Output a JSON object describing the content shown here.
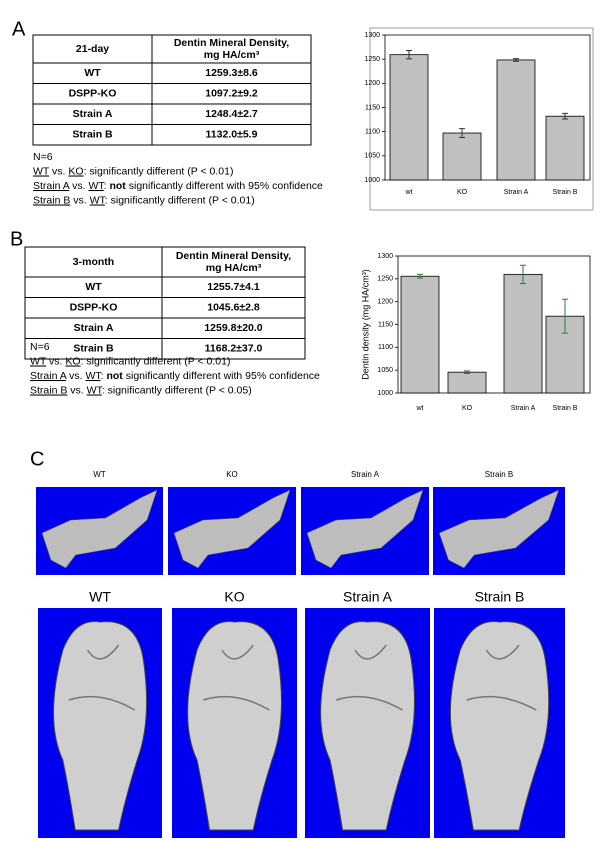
{
  "panels": [
    {
      "label": "A",
      "table": {
        "header": [
          [
            "21-day"
          ],
          [
            "Dentin Mineral Density,",
            "mg HA/cm³"
          ]
        ],
        "rows": [
          [
            "WT",
            "1259.3±8.6"
          ],
          [
            "DSPP-KO",
            "1097.2±9.2"
          ],
          [
            "Strain A",
            "1248.4±2.7"
          ],
          [
            "Strain B",
            "1132.0±5.9"
          ]
        ]
      },
      "notes": [
        [
          "N=6"
        ],
        [
          "WT",
          " vs. ",
          "KO",
          ": significantly different (P < 0.01)"
        ],
        [
          "Strain A",
          " vs. ",
          "WT",
          ": ",
          "not",
          " significantly different with 95% confidence"
        ],
        [
          "Strain B",
          " vs. ",
          "WT",
          ": significantly different (P < 0.01)"
        ]
      ]
    },
    {
      "label": "B",
      "table": {
        "header": [
          [
            "3-month"
          ],
          [
            "Dentin Mineral Density,",
            "mg HA/cm³"
          ]
        ],
        "rows": [
          [
            "WT",
            "1255.7±4.1"
          ],
          [
            "DSPP-KO",
            "1045.6±2.8"
          ],
          [
            "Strain A",
            "1259.8±20.0"
          ],
          [
            "Strain B",
            "1168.2±37.0"
          ]
        ]
      },
      "notes": [
        [
          "N=6"
        ],
        [
          "WT",
          " vs. ",
          "KO",
          ": significantly different (P < 0.01)"
        ],
        [
          "Strain A",
          " vs. ",
          "WT",
          ": ",
          "not",
          " significantly different with 95% confidence"
        ],
        [
          "Strain B",
          " vs. ",
          "WT",
          ": significantly different (P < 0.05)"
        ]
      ]
    }
  ],
  "chart_data": [
    {
      "type": "bar",
      "categories": [
        "wt",
        "KO",
        "Strain A",
        "Strain B"
      ],
      "values": [
        1259.3,
        1097.2,
        1248.4,
        1132.0
      ],
      "errors": [
        8.6,
        9.2,
        2.7,
        5.9
      ],
      "color": "#c0c0c0",
      "error_color": "#333333",
      "ylim": [
        1000,
        1300
      ],
      "yticks": [
        1000,
        1050,
        1100,
        1150,
        1200,
        1250,
        1300
      ]
    },
    {
      "type": "bar",
      "categories": [
        "wt",
        "KO",
        "Strain A",
        "Strain B"
      ],
      "y_label": "Dentin density (mg HA/cm³)",
      "values": [
        1255.7,
        1045.6,
        1259.8,
        1168.2
      ],
      "errors": [
        4.1,
        2.8,
        20.0,
        37.0
      ],
      "color": "#c0c0c0",
      "error_color": "#2e7d32",
      "ylim": [
        1000,
        1300
      ],
      "yticks": [
        1000,
        1050,
        1100,
        1150,
        1200,
        1250,
        1300
      ]
    }
  ],
  "panel_c": {
    "label": "C",
    "top_labels": [
      "WT",
      "KO",
      "Strain A",
      "Strain B"
    ],
    "bottom_labels": [
      "WT",
      "KO",
      "Strain A",
      "Strain B"
    ]
  }
}
